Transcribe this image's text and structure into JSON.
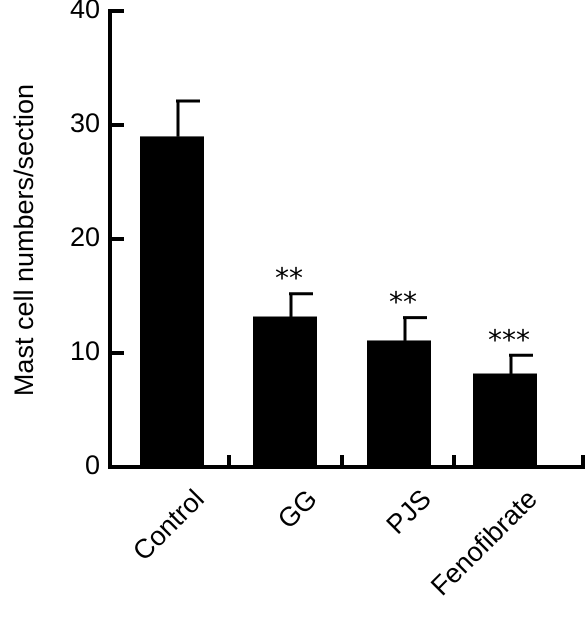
{
  "chart_data": {
    "type": "bar",
    "categories": [
      "Control",
      "GG",
      "PJS",
      "Fenofibrate"
    ],
    "values": [
      29,
      13.2,
      11.1,
      8.2
    ],
    "errors": [
      3.1,
      2.0,
      2.0,
      1.6
    ],
    "significance": [
      "",
      "**",
      "**",
      "***"
    ],
    "title": "",
    "xlabel": "",
    "ylabel": "Mast cell numbers/section",
    "ylim": [
      0,
      40
    ],
    "yticks": [
      0,
      10,
      20,
      30,
      40
    ],
    "bar_color": "#000000",
    "grid": false
  }
}
